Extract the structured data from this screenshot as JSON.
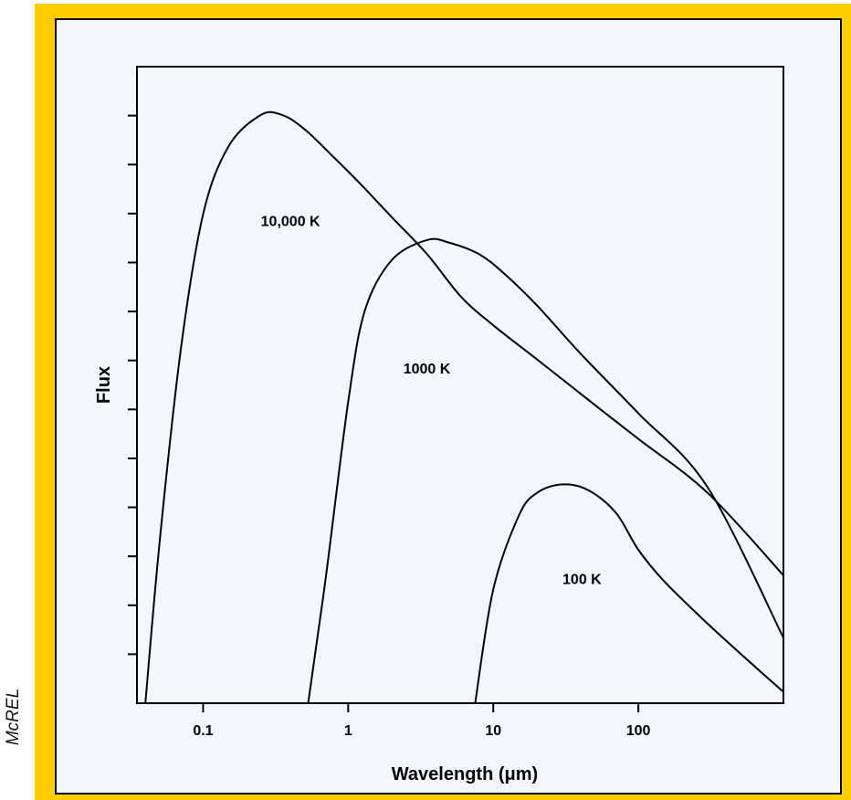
{
  "credit": "McREL",
  "chart_data": {
    "type": "line",
    "xscale": "log",
    "xlabel": "Wavelength (μm)",
    "ylabel": "Flux",
    "title": "",
    "x_ticks": [
      0.1,
      1,
      10,
      100
    ],
    "x_tick_labels": [
      "0.1",
      "1",
      "10",
      "100"
    ],
    "xlim": [
      0.035,
      1000
    ],
    "y_minor_tick_count": 12,
    "y_tick_labels_shown": false,
    "grid": false,
    "series": [
      {
        "name": "10,000 K",
        "x": [
          0.04,
          0.05,
          0.07,
          0.1,
          0.15,
          0.25,
          0.35,
          0.5,
          0.8,
          1.2,
          2,
          3.5,
          6,
          10,
          20,
          50,
          100,
          300,
          1000
        ],
        "y": [
          0.0,
          0.28,
          0.62,
          0.86,
          0.98,
          1.035,
          1.035,
          1.01,
          0.96,
          0.915,
          0.855,
          0.79,
          0.715,
          0.665,
          0.605,
          0.525,
          0.465,
          0.37,
          0.225
        ]
      },
      {
        "name": "1000 K",
        "x": [
          0.53,
          0.7,
          1.0,
          1.3,
          2,
          3.5,
          5,
          8,
          12,
          20,
          40,
          100,
          300,
          1000
        ],
        "y": [
          0.0,
          0.22,
          0.53,
          0.69,
          0.78,
          0.815,
          0.81,
          0.79,
          0.755,
          0.7,
          0.615,
          0.51,
          0.38,
          0.115
        ]
      },
      {
        "name": "100 K",
        "x": [
          7.5,
          10,
          15,
          20,
          30,
          45,
          70,
          100,
          150,
          300,
          600,
          1000
        ],
        "y": [
          0.0,
          0.2,
          0.33,
          0.37,
          0.385,
          0.375,
          0.335,
          0.27,
          0.215,
          0.14,
          0.07,
          0.02
        ]
      }
    ],
    "annotations": [
      {
        "text": "10,000 K",
        "x": 0.25,
        "y": 0.84
      },
      {
        "text": "1000 K",
        "x": 2.4,
        "y": 0.58
      },
      {
        "text": "100 K",
        "x": 30,
        "y": 0.21
      }
    ]
  }
}
